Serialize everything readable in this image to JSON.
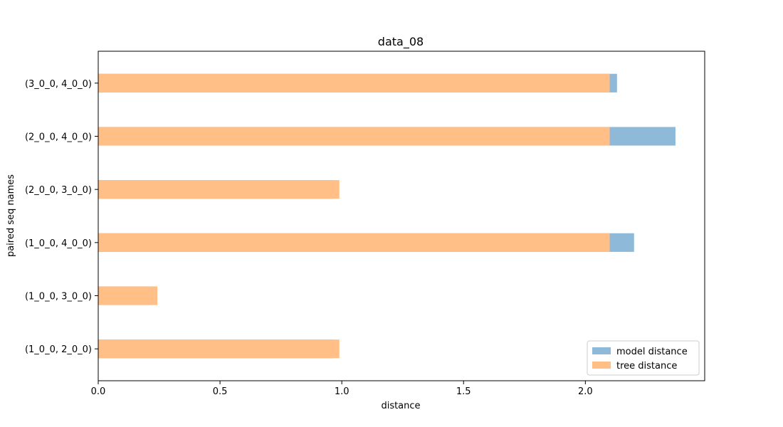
{
  "chart_data": {
    "type": "bar",
    "orientation": "horizontal",
    "title": "data_08",
    "xlabel": "distance",
    "ylabel": "paired seq names",
    "categories": [
      "(1_0_0, 2_0_0)",
      "(1_0_0, 3_0_0)",
      "(1_0_0, 4_0_0)",
      "(2_0_0, 3_0_0)",
      "(2_0_0, 4_0_0)",
      "(3_0_0, 4_0_0)"
    ],
    "series": [
      {
        "name": "model distance",
        "color": "#8fb9d9",
        "values": [
          0.966,
          0.217,
          2.2,
          0.968,
          2.37,
          2.13
        ]
      },
      {
        "name": "tree distance",
        "color": "#ffbf86",
        "values": [
          0.99,
          0.243,
          2.1,
          0.99,
          2.1,
          2.1
        ]
      }
    ],
    "xlim": [
      0,
      2.49
    ],
    "xticks": [
      0.0,
      0.5,
      1.0,
      1.5,
      2.0
    ],
    "xtick_labels": [
      "0.0",
      "0.5",
      "1.0",
      "1.5",
      "2.0"
    ],
    "grid": false,
    "legend_position": "lower-right"
  }
}
